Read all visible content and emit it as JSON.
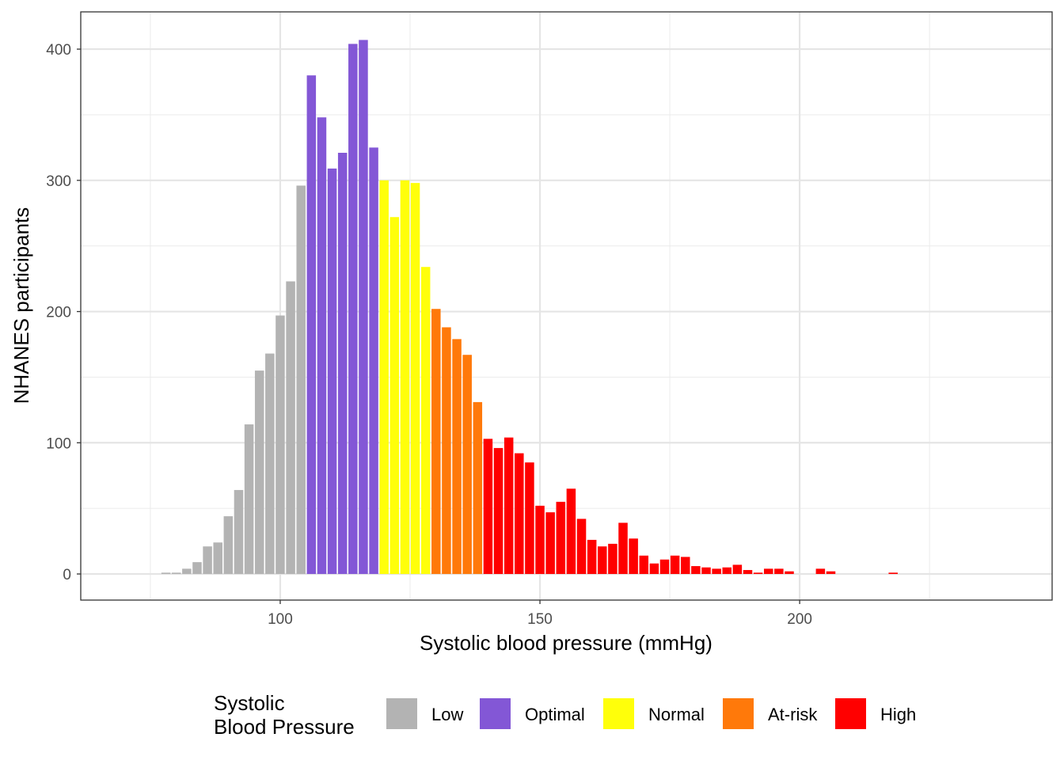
{
  "chart_data": {
    "type": "bar",
    "xlabel": "Systolic blood pressure (mmHg)",
    "ylabel": "NHANES participants",
    "xlim": [
      61.6,
      248.6
    ],
    "ylim": [
      -19.9,
      428.4
    ],
    "xticks": [
      "100",
      "150",
      "200"
    ],
    "xtick_values": [
      100,
      150,
      200
    ],
    "yticks": [
      "0",
      "100",
      "200",
      "300",
      "400"
    ],
    "ytick_values": [
      0,
      100,
      200,
      300,
      400
    ],
    "grid": true,
    "bin_width": 2,
    "legend": {
      "title_lines": [
        "Systolic",
        "Blood Pressure"
      ],
      "placement": "bottom",
      "entries": [
        {
          "label": "Low",
          "color": "#B3B3B3"
        },
        {
          "label": "Optimal",
          "color": "#8357D6"
        },
        {
          "label": "Normal",
          "color": "#FFFF0A"
        },
        {
          "label": "At-risk",
          "color": "#FF790A"
        },
        {
          "label": "High",
          "color": "#FF0000"
        }
      ]
    },
    "bars": [
      {
        "x": 78,
        "y": 1,
        "cat": 0
      },
      {
        "x": 80,
        "y": 1,
        "cat": 0
      },
      {
        "x": 82,
        "y": 4,
        "cat": 0
      },
      {
        "x": 84,
        "y": 9,
        "cat": 0
      },
      {
        "x": 86,
        "y": 21,
        "cat": 0
      },
      {
        "x": 88,
        "y": 24,
        "cat": 0
      },
      {
        "x": 90,
        "y": 44,
        "cat": 0
      },
      {
        "x": 92,
        "y": 64,
        "cat": 0
      },
      {
        "x": 94,
        "y": 114,
        "cat": 0
      },
      {
        "x": 96,
        "y": 155,
        "cat": 0
      },
      {
        "x": 98,
        "y": 168,
        "cat": 0
      },
      {
        "x": 100,
        "y": 197,
        "cat": 0
      },
      {
        "x": 102,
        "y": 223,
        "cat": 0
      },
      {
        "x": 104,
        "y": 296,
        "cat": 0
      },
      {
        "x": 106,
        "y": 380,
        "cat": 1
      },
      {
        "x": 108,
        "y": 348,
        "cat": 1
      },
      {
        "x": 110,
        "y": 309,
        "cat": 1
      },
      {
        "x": 112,
        "y": 321,
        "cat": 1
      },
      {
        "x": 114,
        "y": 404,
        "cat": 1
      },
      {
        "x": 116,
        "y": 407,
        "cat": 1
      },
      {
        "x": 118,
        "y": 325,
        "cat": 1
      },
      {
        "x": 120,
        "y": 300,
        "cat": 2
      },
      {
        "x": 122,
        "y": 272,
        "cat": 2
      },
      {
        "x": 124,
        "y": 300,
        "cat": 2
      },
      {
        "x": 126,
        "y": 298,
        "cat": 2
      },
      {
        "x": 128,
        "y": 234,
        "cat": 2
      },
      {
        "x": 130,
        "y": 202,
        "cat": 3
      },
      {
        "x": 132,
        "y": 188,
        "cat": 3
      },
      {
        "x": 134,
        "y": 179,
        "cat": 3
      },
      {
        "x": 136,
        "y": 167,
        "cat": 3
      },
      {
        "x": 138,
        "y": 131,
        "cat": 3
      },
      {
        "x": 140,
        "y": 103,
        "cat": 4
      },
      {
        "x": 142,
        "y": 96,
        "cat": 4
      },
      {
        "x": 144,
        "y": 104,
        "cat": 4
      },
      {
        "x": 146,
        "y": 92,
        "cat": 4
      },
      {
        "x": 148,
        "y": 85,
        "cat": 4
      },
      {
        "x": 150,
        "y": 52,
        "cat": 4
      },
      {
        "x": 152,
        "y": 47,
        "cat": 4
      },
      {
        "x": 154,
        "y": 55,
        "cat": 4
      },
      {
        "x": 156,
        "y": 65,
        "cat": 4
      },
      {
        "x": 158,
        "y": 42,
        "cat": 4
      },
      {
        "x": 160,
        "y": 26,
        "cat": 4
      },
      {
        "x": 162,
        "y": 21,
        "cat": 4
      },
      {
        "x": 164,
        "y": 23,
        "cat": 4
      },
      {
        "x": 166,
        "y": 39,
        "cat": 4
      },
      {
        "x": 168,
        "y": 27,
        "cat": 4
      },
      {
        "x": 170,
        "y": 14,
        "cat": 4
      },
      {
        "x": 172,
        "y": 8,
        "cat": 4
      },
      {
        "x": 174,
        "y": 11,
        "cat": 4
      },
      {
        "x": 176,
        "y": 14,
        "cat": 4
      },
      {
        "x": 178,
        "y": 13,
        "cat": 4
      },
      {
        "x": 180,
        "y": 6,
        "cat": 4
      },
      {
        "x": 182,
        "y": 5,
        "cat": 4
      },
      {
        "x": 184,
        "y": 4,
        "cat": 4
      },
      {
        "x": 186,
        "y": 5,
        "cat": 4
      },
      {
        "x": 188,
        "y": 7,
        "cat": 4
      },
      {
        "x": 190,
        "y": 3,
        "cat": 4
      },
      {
        "x": 192,
        "y": 1,
        "cat": 4
      },
      {
        "x": 194,
        "y": 4,
        "cat": 4
      },
      {
        "x": 196,
        "y": 4,
        "cat": 4
      },
      {
        "x": 198,
        "y": 2,
        "cat": 4
      },
      {
        "x": 204,
        "y": 4,
        "cat": 4
      },
      {
        "x": 206,
        "y": 2,
        "cat": 4
      },
      {
        "x": 218,
        "y": 1,
        "cat": 4
      }
    ]
  }
}
